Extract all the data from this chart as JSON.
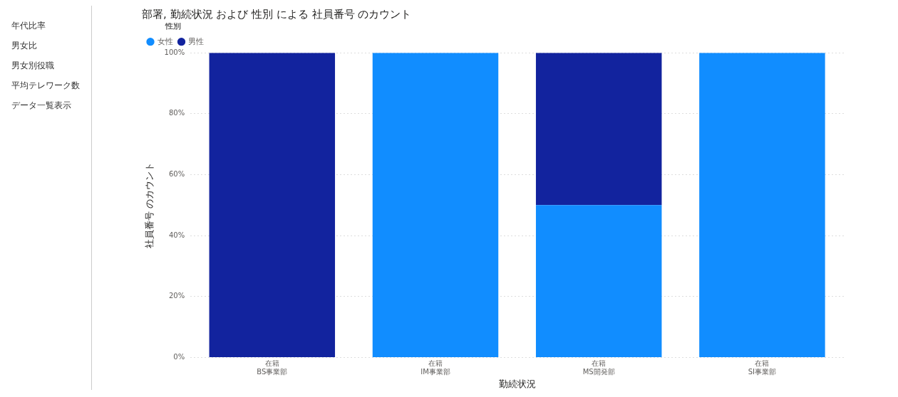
{
  "chart_data": [
    {
      "type": "other",
      "annotations": [
        "年代比率",
        "男女比",
        "男女別役職",
        "平均テレワーク数",
        "データ一覧表示"
      ]
    },
    {
      "type": "bar",
      "title": "部署, 勤続状況 および 性別 による 社員番号 のカウント",
      "xlabel": "勤続状況",
      "ylabel": "社員番号 のカウント",
      "legend_title": "性別",
      "legend": "top left",
      "stacked": true,
      "grid": "y",
      "categories": [
        "在籍\nBS事業部",
        "在籍\nIM事業部",
        "在籍\nMS開発部",
        "在籍\nSI事業部"
      ],
      "series": [
        {
          "name": "女性",
          "color": "#118dff",
          "values": [
            0,
            100,
            50,
            100
          ]
        },
        {
          "name": "男性",
          "color": "#12239e",
          "values": [
            100,
            0,
            50,
            0
          ]
        }
      ],
      "ylim": [
        0,
        100
      ],
      "yticks": [
        {
          "value": 0,
          "label": "0%"
        },
        {
          "value": 20,
          "label": "20%"
        },
        {
          "value": 40,
          "label": "40%"
        },
        {
          "value": 60,
          "label": "60%"
        },
        {
          "value": 80,
          "label": "80%"
        },
        {
          "value": 100,
          "label": "100%"
        }
      ]
    }
  ]
}
